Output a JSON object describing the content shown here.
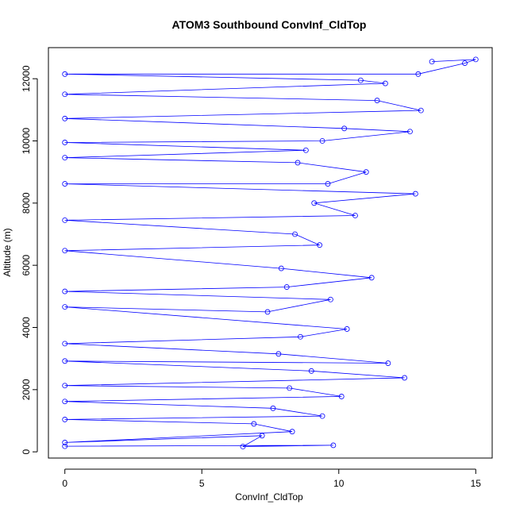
{
  "chart_data": {
    "type": "line",
    "title": "ATOM3 Southbound ConvInf_CldTop",
    "xlabel": "ConvInf_CldTop",
    "ylabel": "Altitude (m)",
    "xlim": [
      -0.6,
      15.6
    ],
    "ylim": [
      -200,
      13000
    ],
    "xticks": [
      0,
      5,
      10,
      15
    ],
    "yticks": [
      0,
      2000,
      4000,
      6000,
      8000,
      10000,
      12000
    ],
    "grid": false,
    "legend": "none",
    "color": "#0000ff",
    "markers": "open circle",
    "series": [
      {
        "values": [
          [
            0,
            180
          ],
          [
            9.8,
            210
          ],
          [
            6.5,
            170
          ],
          [
            7.2,
            520
          ],
          [
            0,
            300
          ],
          [
            8.3,
            650
          ],
          [
            6.9,
            900
          ],
          [
            0,
            1040
          ],
          [
            9.4,
            1150
          ],
          [
            7.6,
            1400
          ],
          [
            0,
            1620
          ],
          [
            10.1,
            1780
          ],
          [
            8.2,
            2050
          ],
          [
            0,
            2130
          ],
          [
            12.4,
            2380
          ],
          [
            9.0,
            2600
          ],
          [
            0,
            2920
          ],
          [
            11.8,
            2850
          ],
          [
            7.8,
            3150
          ],
          [
            0,
            3480
          ],
          [
            8.6,
            3700
          ],
          [
            10.3,
            3950
          ],
          [
            0,
            4660
          ],
          [
            7.4,
            4500
          ],
          [
            9.7,
            4900
          ],
          [
            0,
            5160
          ],
          [
            8.1,
            5300
          ],
          [
            11.2,
            5600
          ],
          [
            7.9,
            5900
          ],
          [
            0,
            6470
          ],
          [
            9.3,
            6650
          ],
          [
            8.4,
            7000
          ],
          [
            0,
            7450
          ],
          [
            10.6,
            7600
          ],
          [
            9.1,
            8000
          ],
          [
            12.8,
            8300
          ],
          [
            0,
            8620
          ],
          [
            9.6,
            8620
          ],
          [
            11.0,
            9000
          ],
          [
            8.5,
            9300
          ],
          [
            0,
            9460
          ],
          [
            8.8,
            9700
          ],
          [
            0,
            9950
          ],
          [
            9.4,
            10000
          ],
          [
            12.6,
            10300
          ],
          [
            10.2,
            10400
          ],
          [
            0,
            10720
          ],
          [
            13.0,
            10980
          ],
          [
            11.4,
            11300
          ],
          [
            0,
            11500
          ],
          [
            11.7,
            11850
          ],
          [
            10.8,
            11950
          ],
          [
            0,
            12150
          ],
          [
            12.9,
            12150
          ],
          [
            14.6,
            12500
          ],
          [
            15.0,
            12620
          ],
          [
            13.4,
            12550
          ]
        ]
      }
    ]
  }
}
